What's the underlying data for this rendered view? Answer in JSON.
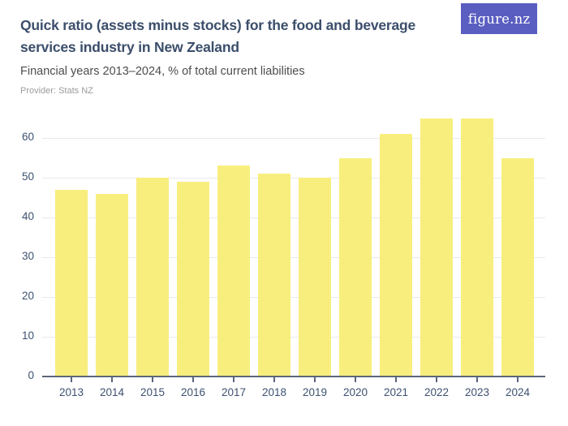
{
  "header": {
    "title": "Quick ratio (assets minus stocks) for the food and beverage services industry in New Zealand",
    "subtitle": "Financial years 2013–2024, % of total current liabilities",
    "provider": "Provider: Stats NZ",
    "logo_text": "figure.nz"
  },
  "colors": {
    "bar": "#f8ee7e",
    "logo_bg": "#5a5ec1",
    "title_text": "#3b4e6b",
    "subtitle_text": "#4d4d4d",
    "provider_text": "#9b9b9b",
    "axis_text": "#3d5070",
    "gridline": "#e9e9e9",
    "axis_line": "#5b6678"
  },
  "chart_data": {
    "type": "bar",
    "title": "Quick ratio (assets minus stocks) for the food and beverage services industry in New Zealand",
    "subtitle": "Financial years 2013–2024, % of total current liabilities",
    "categories": [
      "2013",
      "2014",
      "2015",
      "2016",
      "2017",
      "2018",
      "2019",
      "2020",
      "2021",
      "2022",
      "2023",
      "2024"
    ],
    "values": [
      47,
      46,
      50,
      49,
      53,
      51,
      50,
      55,
      61,
      65,
      65,
      55
    ],
    "xlabel": "",
    "ylabel": "% of total current liabilities",
    "ylim": [
      0,
      68
    ],
    "yticks": [
      0,
      10,
      20,
      30,
      40,
      50,
      60
    ],
    "grid": true,
    "legend": false,
    "bar_color": "#f8ee7e"
  }
}
